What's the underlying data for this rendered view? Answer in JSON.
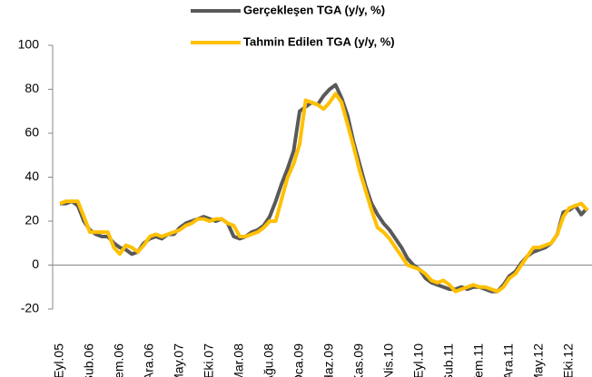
{
  "chart_data": {
    "type": "line",
    "categories": [
      "Eyl.05",
      null,
      null,
      null,
      null,
      "Şub.06",
      null,
      null,
      null,
      null,
      "Tem.06",
      null,
      null,
      null,
      null,
      "Ara.06",
      null,
      null,
      null,
      null,
      "May.07",
      null,
      null,
      null,
      null,
      "Eki.07",
      null,
      null,
      null,
      null,
      "Mar.08",
      null,
      null,
      null,
      null,
      "Ağu.08",
      null,
      null,
      null,
      null,
      "Oca.09",
      null,
      null,
      null,
      null,
      "Haz.09",
      null,
      null,
      null,
      null,
      "Kas.09",
      null,
      null,
      null,
      null,
      "Nis.10",
      null,
      null,
      null,
      null,
      "Eyl.10",
      null,
      null,
      null,
      null,
      "Şub.11",
      null,
      null,
      null,
      null,
      "Tem.11",
      null,
      null,
      null,
      null,
      "Ara.11",
      null,
      null,
      null,
      null,
      "May.12",
      null,
      null,
      null,
      null,
      "Eki.12",
      null,
      null,
      null
    ],
    "series": [
      {
        "name": "Gerçekleşen TGA (y/y, %)",
        "color": "#595959",
        "values": [
          28,
          28,
          29,
          27,
          20,
          16,
          14,
          13,
          13,
          10,
          8,
          7,
          5,
          6,
          10,
          12,
          13,
          12,
          14,
          14,
          17,
          19,
          20,
          21,
          22,
          21,
          20,
          21,
          19,
          13,
          12,
          13,
          15,
          16,
          18,
          22,
          29,
          37,
          44,
          52,
          70,
          72,
          74,
          73,
          77,
          80,
          82,
          76,
          68,
          56,
          46,
          36,
          28,
          23,
          19,
          16,
          12,
          8,
          3,
          0,
          -2,
          -6,
          -8,
          -9,
          -10,
          -11,
          -11,
          -10,
          -11,
          -10,
          -10,
          -11,
          -12,
          -12,
          -9,
          -5,
          -3,
          1,
          4,
          6,
          7,
          8,
          10,
          14,
          24,
          25,
          27,
          23,
          26
        ]
      },
      {
        "name": "Tahmin Edilen TGA (y/y, %)",
        "color": "#FFC000",
        "values": [
          28,
          29,
          29,
          29,
          22,
          15,
          15,
          15,
          15,
          8,
          5,
          9,
          8,
          6,
          9,
          13,
          14,
          13,
          14,
          15,
          16,
          18,
          19,
          21,
          21,
          20,
          21,
          21,
          19,
          18,
          13,
          13,
          14,
          15,
          17,
          20,
          20,
          30,
          40,
          46,
          55,
          75,
          74,
          73,
          71,
          74,
          78,
          74,
          64,
          54,
          43,
          34,
          25,
          17,
          15,
          12,
          8,
          4,
          0,
          -1,
          -2,
          -4,
          -7,
          -8,
          -7,
          -9,
          -12,
          -11,
          -10,
          -9,
          -10,
          -10,
          -11,
          -12,
          -10,
          -6,
          -4,
          0,
          4,
          8,
          8,
          9,
          10,
          14,
          22,
          26,
          27,
          28,
          25
        ]
      }
    ],
    "ylim": [
      -20,
      100
    ],
    "yticks": [
      -20,
      0,
      20,
      40,
      60,
      80,
      100
    ],
    "legend": "top",
    "grid": false
  }
}
